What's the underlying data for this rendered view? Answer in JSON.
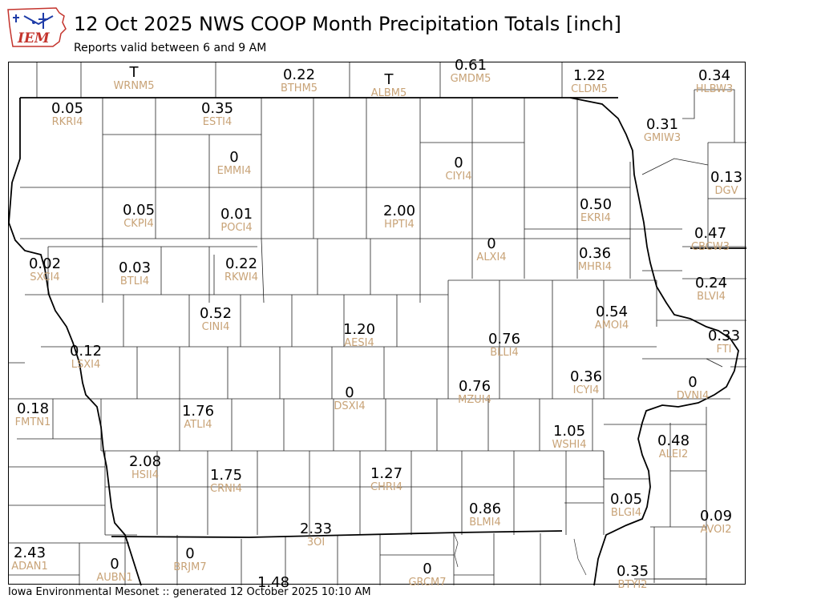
{
  "header": {
    "logo_text": "IEM",
    "title": "12 Oct 2025 NWS COOP Month Precipitation Totals [inch]",
    "subtitle": "Reports valid between 6 and 9 AM"
  },
  "footer": {
    "text": "Iowa Environmental Mesonet :: generated 12 October 2025 10:10 AM"
  },
  "map": {
    "stations": [
      {
        "id": "WRNM5",
        "value": "T"
      },
      {
        "id": "BTHM5",
        "value": "0.22"
      },
      {
        "id": "ALBM5",
        "value": "T"
      },
      {
        "id": "GMDM5",
        "value": "0.61"
      },
      {
        "id": "CLDM5",
        "value": "1.22"
      },
      {
        "id": "HLBW3",
        "value": "0.34"
      },
      {
        "id": "RKRI4",
        "value": "0.05"
      },
      {
        "id": "ESTI4",
        "value": "0.35"
      },
      {
        "id": "GMIW3",
        "value": "0.31"
      },
      {
        "id": "EMMI4",
        "value": "0"
      },
      {
        "id": "CIYI4",
        "value": "0"
      },
      {
        "id": "DGV",
        "value": "0.13"
      },
      {
        "id": "CKPI4",
        "value": "0.05"
      },
      {
        "id": "POCI4",
        "value": "0.01"
      },
      {
        "id": "HPTI4",
        "value": "2.00"
      },
      {
        "id": "EKRI4",
        "value": "0.50"
      },
      {
        "id": "CBCW3",
        "value": "0.47"
      },
      {
        "id": "ALXI4",
        "value": "0"
      },
      {
        "id": "SXCI4",
        "value": "0.02"
      },
      {
        "id": "BTLI4",
        "value": "0.03"
      },
      {
        "id": "RKWI4",
        "value": "0.22"
      },
      {
        "id": "MHRI4",
        "value": "0.36"
      },
      {
        "id": "BLVI4",
        "value": "0.24"
      },
      {
        "id": "CINI4",
        "value": "0.52"
      },
      {
        "id": "AMOI4",
        "value": "0.54"
      },
      {
        "id": "AESI4",
        "value": "1.20"
      },
      {
        "id": "BLLI4",
        "value": "0.76"
      },
      {
        "id": "FTI",
        "value": "0.33"
      },
      {
        "id": "LSXI4",
        "value": "0.12"
      },
      {
        "id": "ICYI4",
        "value": "0.36"
      },
      {
        "id": "DVNI4",
        "value": "0"
      },
      {
        "id": "DSXI4",
        "value": "0"
      },
      {
        "id": "MZUI4",
        "value": "0.76"
      },
      {
        "id": "FMTN1",
        "value": "0.18"
      },
      {
        "id": "ATLI4",
        "value": "1.76"
      },
      {
        "id": "WSHI4",
        "value": "1.05"
      },
      {
        "id": "ALEI2",
        "value": "0.48"
      },
      {
        "id": "HSII4",
        "value": "2.08"
      },
      {
        "id": "CRNI4",
        "value": "1.75"
      },
      {
        "id": "CHRI4",
        "value": "1.27"
      },
      {
        "id": "BLMI4",
        "value": "0.86"
      },
      {
        "id": "BLGI4",
        "value": "0.05"
      },
      {
        "id": "AVOI2",
        "value": "0.09"
      },
      {
        "id": "3OI",
        "value": "2.33"
      },
      {
        "id": "ADAN1",
        "value": "2.43"
      },
      {
        "id": "AUBN1",
        "value": "0"
      },
      {
        "id": "BRJM7",
        "value": "0"
      },
      {
        "id": "GRCM7",
        "value": "0"
      },
      {
        "id": "BTYI2",
        "value": "0.35"
      },
      {
        "id": "",
        "value": "1.48"
      }
    ]
  }
}
